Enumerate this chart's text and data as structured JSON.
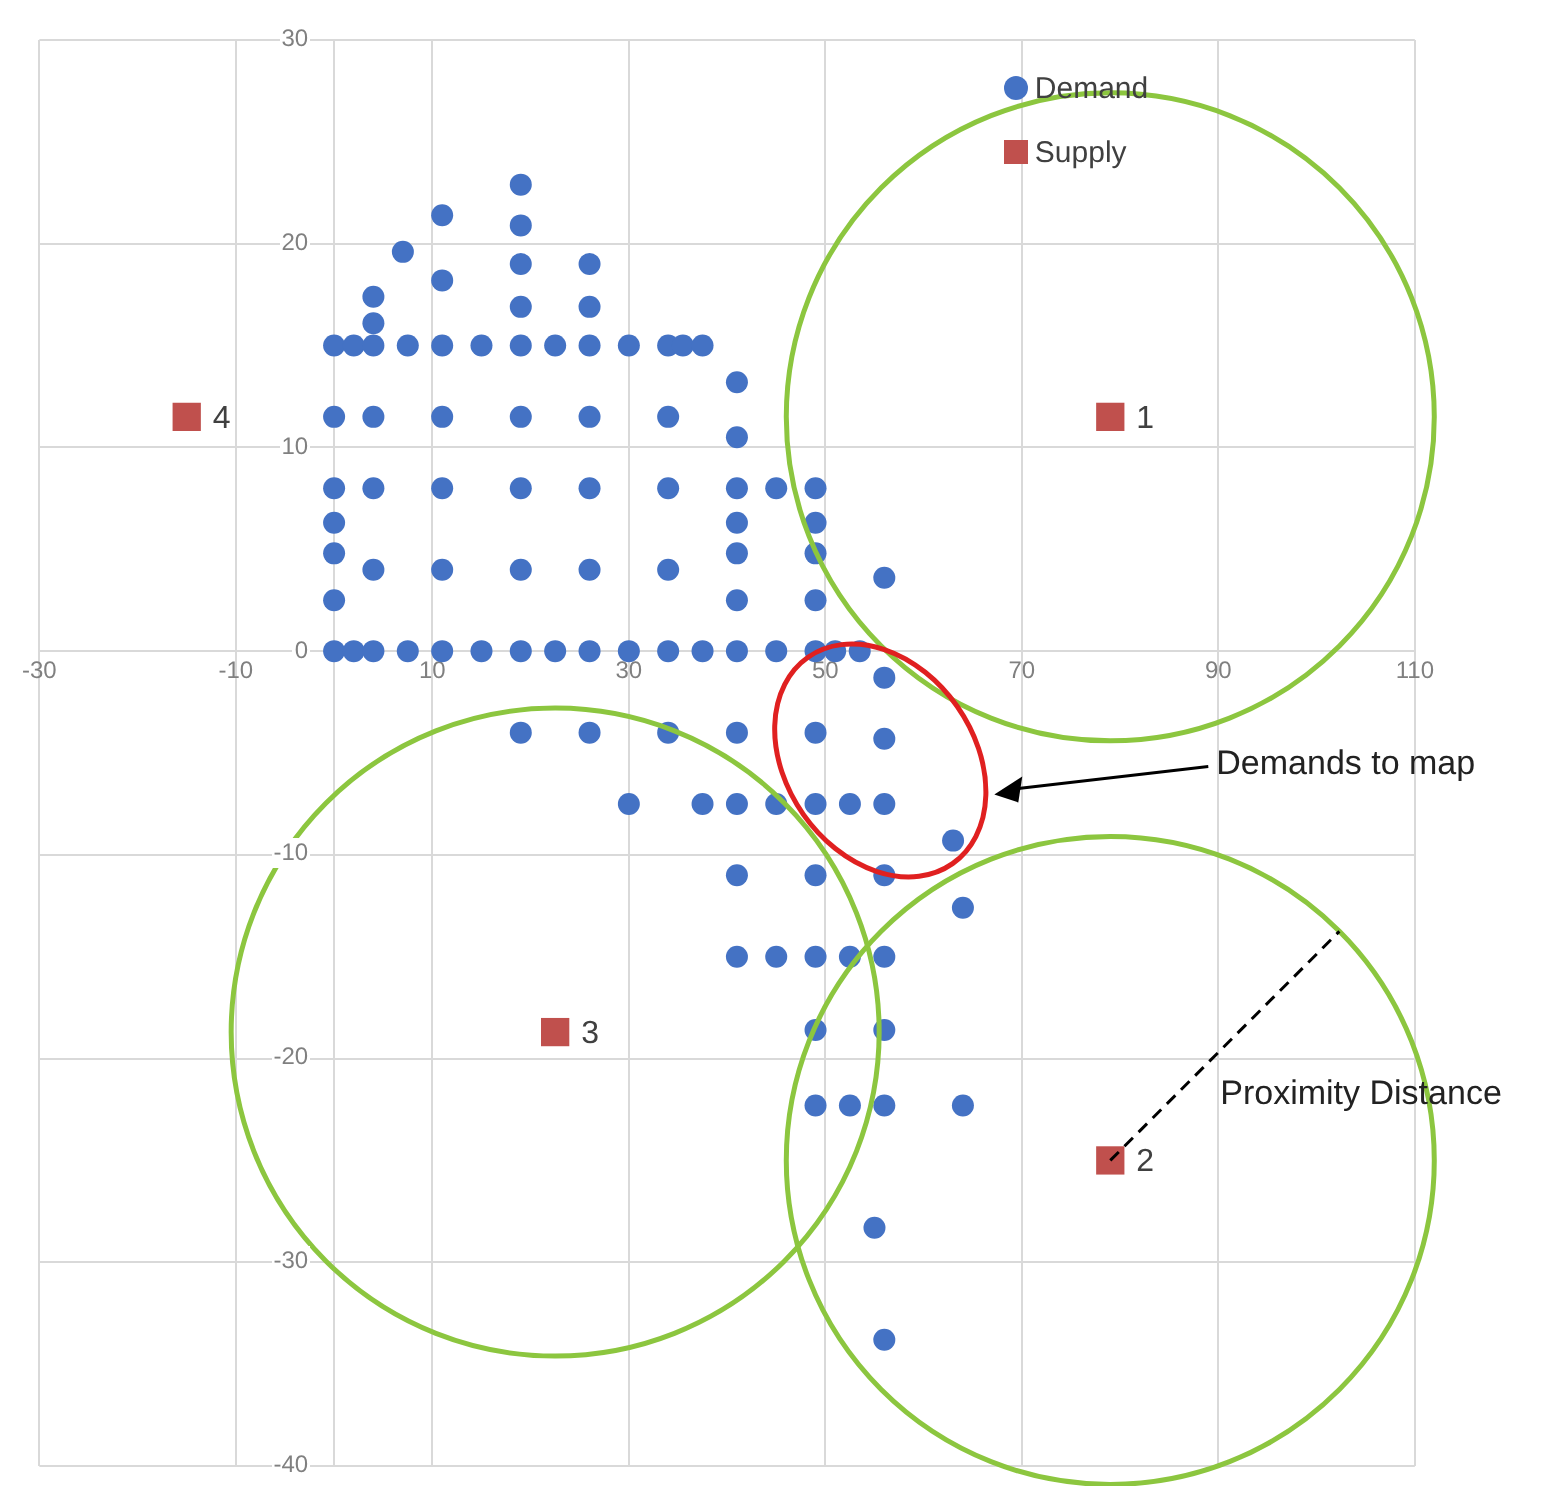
{
  "chart_data": {
    "type": "scatter",
    "xlim": [
      -30,
      110
    ],
    "ylim": [
      -40,
      30
    ],
    "xticks": [
      -30,
      -10,
      10,
      30,
      50,
      70,
      90,
      110
    ],
    "yticks": [
      -40,
      -30,
      -20,
      -10,
      0,
      10,
      20,
      30
    ],
    "grid": true,
    "legend": "top right",
    "series": [
      {
        "name": "Demand",
        "color": "#4472c4",
        "marker": "circle",
        "x": [
          0,
          2,
          4,
          7.5,
          11,
          15,
          19,
          22.5,
          26,
          30,
          34,
          37.5,
          41,
          45,
          49,
          51,
          53.5,
          0,
          41,
          49,
          4,
          11,
          19,
          26,
          34,
          0,
          41,
          49,
          0,
          41,
          49,
          0,
          4,
          11,
          19,
          26,
          34,
          41,
          45,
          49,
          41,
          0,
          4,
          11,
          19,
          26,
          34,
          41,
          0,
          2,
          4,
          7.5,
          11,
          15,
          19,
          22.5,
          26,
          30,
          34,
          35.5,
          37.5,
          4,
          4,
          19,
          26,
          11,
          19,
          26,
          7,
          19,
          11,
          19,
          56,
          56,
          56,
          19,
          26,
          34,
          41,
          49,
          30,
          37.5,
          41,
          45,
          49,
          52.5,
          56,
          63,
          41,
          49,
          56,
          64,
          41,
          45,
          49,
          52.5,
          56,
          49,
          56,
          49,
          52.5,
          56,
          64,
          55,
          56
        ],
        "values": [
          0,
          0,
          0,
          0,
          0,
          0,
          0,
          0,
          0,
          0,
          0,
          0,
          0,
          0,
          0,
          0,
          0,
          2.5,
          2.5,
          2.5,
          4,
          4,
          4,
          4,
          4,
          4.8,
          4.8,
          4.8,
          6.3,
          6.3,
          6.3,
          8,
          8,
          8,
          8,
          8,
          8,
          8,
          8,
          8,
          10.5,
          11.5,
          11.5,
          11.5,
          11.5,
          11.5,
          11.5,
          13.2,
          15,
          15,
          15,
          15,
          15,
          15,
          15,
          15,
          15,
          15,
          15,
          15,
          15,
          16.1,
          17.4,
          16.9,
          16.9,
          18.2,
          19,
          19,
          19.6,
          20.9,
          21.4,
          22.9,
          3.6,
          -1.3,
          -4.3,
          -4,
          -4,
          -4,
          -4,
          -4,
          -7.5,
          -7.5,
          -7.5,
          -7.5,
          -7.5,
          -7.5,
          -7.5,
          -9.3,
          -11,
          -11,
          -11,
          -12.6,
          -15,
          -15,
          -15,
          -15,
          -15,
          -18.6,
          -18.6,
          -22.3,
          -22.3,
          -22.3,
          -22.3,
          -28.3,
          -33.8
        ]
      },
      {
        "name": "Supply",
        "color": "#c0504d",
        "marker": "square",
        "x": [
          79,
          79,
          22.5,
          -15
        ],
        "values": [
          11.5,
          -25,
          -18.7,
          11.5
        ]
      }
    ],
    "annotations": [
      {
        "text": "1",
        "x": 79,
        "y": 11.5
      },
      {
        "text": "2",
        "x": 79,
        "y": -25
      },
      {
        "text": "3",
        "x": 22.5,
        "y": -18.7
      },
      {
        "text": "4",
        "x": -15,
        "y": 11.5
      },
      "Demands to map",
      "Proximity Distance"
    ]
  }
}
